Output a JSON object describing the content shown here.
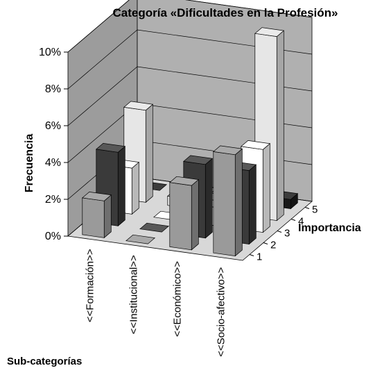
{
  "chart_data": {
    "type": "bar3d",
    "title": "Categoría «Dificultades en la Profesión»",
    "y_label": "Frecuencia",
    "x_label": "Sub-categorías",
    "z_label": "Importancia",
    "categories": [
      "<<Formación>>",
      "<<Institucional>>",
      "<<Económico>>",
      "<<Socio-afectivo>>"
    ],
    "series": [
      {
        "name": "1",
        "color": "#9a9a9a",
        "values": [
          2,
          0,
          3.5,
          5.5
        ]
      },
      {
        "name": "2",
        "color": "#3a3a3a",
        "values": [
          4,
          0,
          4,
          4
        ]
      },
      {
        "name": "3",
        "color": "#ffffff",
        "values": [
          2.5,
          0,
          1,
          4.5
        ]
      },
      {
        "name": "4",
        "color": "#e6e6e6",
        "values": [
          5,
          0.5,
          1,
          10
        ]
      },
      {
        "name": "5",
        "color": "#1a1a1a",
        "values": [
          0,
          0,
          0,
          0.5
        ]
      }
    ],
    "ylim": [
      0,
      10
    ],
    "yticks": [
      {
        "value": 0,
        "label": "0%"
      },
      {
        "value": 2,
        "label": "2%"
      },
      {
        "value": 4,
        "label": "4%"
      },
      {
        "value": 6,
        "label": "6%"
      },
      {
        "value": 8,
        "label": "8%"
      },
      {
        "value": 10,
        "label": "10%"
      }
    ],
    "grid": true
  }
}
